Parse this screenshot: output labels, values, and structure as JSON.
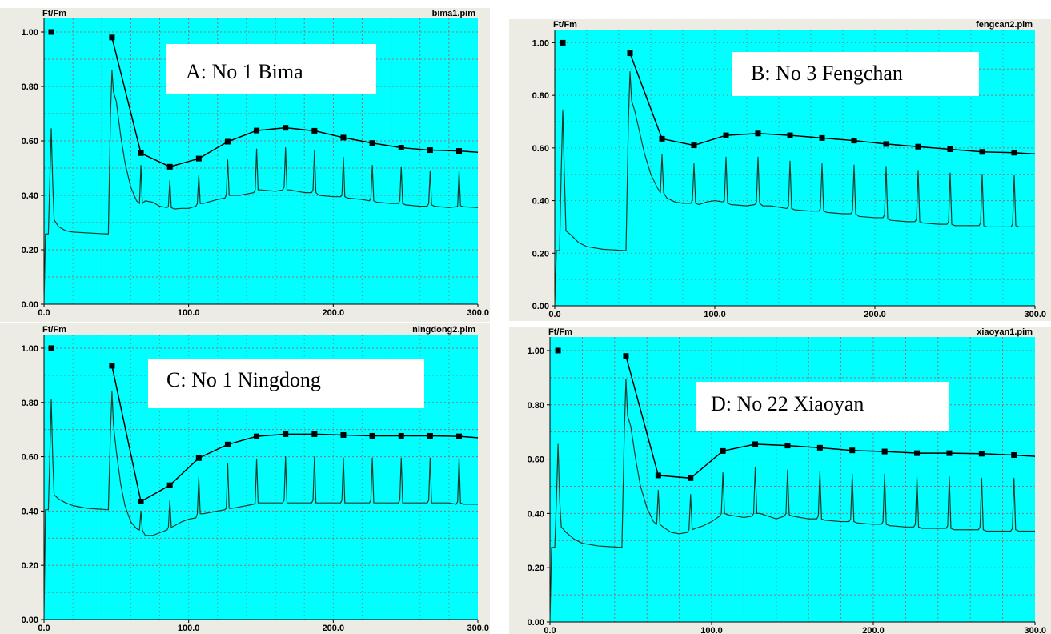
{
  "chart_data": [
    {
      "type": "line",
      "panel": "A",
      "label": "A: No 1 Bima",
      "file": "bima1.pim",
      "ylabel": "Ft/Fm",
      "xlim": [
        0,
        300
      ],
      "ylim": [
        0,
        1.05
      ],
      "y_ticks": [
        "0.00",
        "0.20",
        "0.40",
        "0.60",
        "0.80",
        "1.00"
      ],
      "x_ticks": [
        "0.0",
        "100.0",
        "200.0",
        "300.0"
      ],
      "grid": true,
      "series": [
        {
          "role": "fm-peaks",
          "x": [
            5,
            47,
            67,
            87,
            107,
            127,
            147,
            167,
            187,
            207,
            227,
            247,
            267,
            287
          ],
          "y": [
            1.0,
            0.98,
            0.555,
            0.505,
            0.535,
            0.597,
            0.638,
            0.648,
            0.637,
            0.612,
            0.592,
            0.575,
            0.566,
            0.563
          ]
        },
        {
          "role": "ft-trace",
          "x": [
            0,
            1,
            3,
            4,
            5,
            6,
            7,
            10,
            15,
            20,
            30,
            44,
            44.5,
            46,
            47,
            48,
            50,
            53,
            56,
            60,
            64,
            66,
            67,
            68,
            70,
            75,
            80,
            85,
            86,
            87,
            88,
            90,
            95,
            100,
            105,
            106,
            107,
            108,
            110,
            120,
            125,
            126,
            127,
            128,
            130,
            135,
            140,
            145,
            146,
            147,
            148,
            150,
            160,
            165,
            166,
            167,
            168,
            170,
            180,
            185,
            186,
            187,
            188,
            190,
            200,
            205,
            206,
            207,
            208,
            210,
            220,
            225,
            226,
            227,
            228,
            230,
            240,
            245,
            246,
            247,
            248,
            250,
            260,
            265,
            266,
            267,
            268,
            270,
            280,
            285,
            286,
            287,
            288,
            290,
            300
          ],
          "y": [
            0.0,
            0.258,
            0.258,
            0.45,
            0.645,
            0.45,
            0.31,
            0.285,
            0.27,
            0.265,
            0.262,
            0.258,
            0.258,
            0.7,
            0.86,
            0.78,
            0.745,
            0.62,
            0.52,
            0.43,
            0.38,
            0.37,
            0.51,
            0.37,
            0.38,
            0.375,
            0.36,
            0.355,
            0.36,
            0.455,
            0.355,
            0.35,
            0.352,
            0.352,
            0.36,
            0.37,
            0.475,
            0.37,
            0.37,
            0.385,
            0.39,
            0.4,
            0.53,
            0.4,
            0.4,
            0.4,
            0.405,
            0.41,
            0.42,
            0.57,
            0.42,
            0.42,
            0.415,
            0.42,
            0.43,
            0.575,
            0.42,
            0.42,
            0.41,
            0.41,
            0.42,
            0.565,
            0.41,
            0.4,
            0.395,
            0.395,
            0.4,
            0.54,
            0.395,
            0.39,
            0.385,
            0.38,
            0.39,
            0.51,
            0.38,
            0.375,
            0.37,
            0.37,
            0.38,
            0.505,
            0.37,
            0.365,
            0.36,
            0.36,
            0.37,
            0.49,
            0.365,
            0.36,
            0.355,
            0.358,
            0.36,
            0.488,
            0.362,
            0.358,
            0.355
          ]
        }
      ]
    },
    {
      "type": "line",
      "panel": "B",
      "label": "B: No 3 Fengchan",
      "file": "fengcan2.pim",
      "ylabel": "Ft/Fm",
      "xlim": [
        0,
        300
      ],
      "ylim": [
        0,
        1.05
      ],
      "y_ticks": [
        "0.00",
        "0.20",
        "0.40",
        "0.60",
        "0.80",
        "1.00"
      ],
      "x_ticks": [
        "0.0",
        "100.0",
        "200.0",
        "300.0"
      ],
      "grid": true,
      "series": [
        {
          "role": "fm-peaks",
          "x": [
            5,
            47,
            67,
            87,
            107,
            127,
            147,
            167,
            187,
            207,
            227,
            247,
            267,
            287
          ],
          "y": [
            1.0,
            0.96,
            0.635,
            0.61,
            0.648,
            0.655,
            0.648,
            0.638,
            0.628,
            0.615,
            0.605,
            0.595,
            0.585,
            0.582
          ]
        },
        {
          "role": "ft-trace",
          "x": [
            0,
            1,
            3,
            4,
            5,
            6,
            7,
            10,
            15,
            20,
            30,
            44,
            44.5,
            46,
            47,
            48,
            50,
            53,
            56,
            60,
            64,
            66,
            67,
            68,
            70,
            75,
            80,
            85,
            86,
            87,
            88,
            90,
            95,
            100,
            105,
            106,
            107,
            108,
            110,
            120,
            125,
            126,
            127,
            128,
            130,
            135,
            140,
            145,
            146,
            147,
            148,
            150,
            160,
            165,
            166,
            167,
            168,
            170,
            180,
            185,
            186,
            187,
            188,
            190,
            200,
            205,
            206,
            207,
            208,
            210,
            220,
            225,
            226,
            227,
            228,
            230,
            240,
            245,
            246,
            247,
            248,
            250,
            260,
            265,
            266,
            267,
            268,
            270,
            280,
            285,
            286,
            287,
            288,
            290,
            300
          ],
          "y": [
            0.0,
            0.21,
            0.21,
            0.5,
            0.745,
            0.5,
            0.285,
            0.27,
            0.24,
            0.225,
            0.215,
            0.21,
            0.21,
            0.7,
            0.89,
            0.78,
            0.74,
            0.66,
            0.58,
            0.5,
            0.45,
            0.43,
            0.575,
            0.43,
            0.41,
            0.395,
            0.39,
            0.39,
            0.4,
            0.54,
            0.39,
            0.385,
            0.395,
            0.4,
            0.395,
            0.4,
            0.565,
            0.39,
            0.385,
            0.38,
            0.385,
            0.395,
            0.565,
            0.39,
            0.38,
            0.38,
            0.375,
            0.37,
            0.38,
            0.55,
            0.37,
            0.365,
            0.36,
            0.36,
            0.37,
            0.54,
            0.36,
            0.355,
            0.35,
            0.35,
            0.36,
            0.535,
            0.35,
            0.34,
            0.335,
            0.335,
            0.345,
            0.53,
            0.33,
            0.325,
            0.32,
            0.32,
            0.33,
            0.515,
            0.32,
            0.315,
            0.31,
            0.31,
            0.32,
            0.505,
            0.31,
            0.305,
            0.305,
            0.305,
            0.315,
            0.5,
            0.305,
            0.3,
            0.3,
            0.3,
            0.31,
            0.495,
            0.305,
            0.3,
            0.3
          ]
        }
      ]
    },
    {
      "type": "line",
      "panel": "C",
      "label": "C: No 1 Ningdong",
      "file": "ningdong2.pim",
      "ylabel": "Ft/Fm",
      "xlim": [
        0,
        300
      ],
      "ylim": [
        0,
        1.05
      ],
      "y_ticks": [
        "0.00",
        "0.20",
        "0.40",
        "0.60",
        "0.80",
        "1.00"
      ],
      "x_ticks": [
        "0.0",
        "100.0",
        "200.0",
        "300.0"
      ],
      "grid": true,
      "series": [
        {
          "role": "fm-peaks",
          "x": [
            5,
            47,
            67,
            87,
            107,
            127,
            147,
            167,
            187,
            207,
            227,
            247,
            267,
            287
          ],
          "y": [
            1.0,
            0.935,
            0.435,
            0.495,
            0.595,
            0.645,
            0.675,
            0.683,
            0.683,
            0.68,
            0.677,
            0.677,
            0.677,
            0.675
          ]
        },
        {
          "role": "ft-trace",
          "x": [
            0,
            1,
            3,
            4,
            5,
            6,
            7,
            10,
            15,
            20,
            30,
            44,
            44.5,
            46,
            47,
            48,
            50,
            53,
            56,
            60,
            64,
            66,
            67,
            68,
            70,
            75,
            80,
            85,
            86,
            87,
            88,
            90,
            95,
            100,
            105,
            106,
            107,
            108,
            110,
            120,
            125,
            126,
            127,
            128,
            130,
            135,
            140,
            145,
            146,
            147,
            148,
            150,
            160,
            165,
            166,
            167,
            168,
            170,
            180,
            185,
            186,
            187,
            188,
            190,
            200,
            205,
            206,
            207,
            208,
            210,
            220,
            225,
            226,
            227,
            228,
            230,
            240,
            245,
            246,
            247,
            248,
            250,
            260,
            265,
            266,
            267,
            268,
            270,
            280,
            285,
            286,
            287,
            288,
            290,
            300
          ],
          "y": [
            0.0,
            0.405,
            0.405,
            0.6,
            0.81,
            0.6,
            0.46,
            0.445,
            0.43,
            0.42,
            0.41,
            0.405,
            0.405,
            0.7,
            0.84,
            0.72,
            0.62,
            0.5,
            0.42,
            0.36,
            0.335,
            0.33,
            0.4,
            0.33,
            0.31,
            0.31,
            0.32,
            0.33,
            0.34,
            0.44,
            0.34,
            0.345,
            0.36,
            0.37,
            0.375,
            0.39,
            0.525,
            0.39,
            0.39,
            0.4,
            0.405,
            0.41,
            0.575,
            0.41,
            0.41,
            0.415,
            0.42,
            0.425,
            0.43,
            0.59,
            0.43,
            0.43,
            0.43,
            0.43,
            0.44,
            0.6,
            0.43,
            0.43,
            0.43,
            0.43,
            0.44,
            0.6,
            0.43,
            0.43,
            0.43,
            0.43,
            0.44,
            0.595,
            0.43,
            0.43,
            0.43,
            0.43,
            0.44,
            0.595,
            0.43,
            0.43,
            0.43,
            0.43,
            0.44,
            0.595,
            0.43,
            0.43,
            0.43,
            0.43,
            0.44,
            0.595,
            0.43,
            0.43,
            0.43,
            0.425,
            0.435,
            0.595,
            0.43,
            0.425,
            0.425
          ]
        }
      ]
    },
    {
      "type": "line",
      "panel": "D",
      "label": "D: No 22 Xiaoyan",
      "file": "xiaoyan1.pim",
      "ylabel": "Ft/Fm",
      "xlim": [
        0,
        300
      ],
      "ylim": [
        0,
        1.05
      ],
      "y_ticks": [
        "0.00",
        "0.20",
        "0.40",
        "0.60",
        "0.80",
        "1.00"
      ],
      "x_ticks": [
        "0.0",
        "100.0",
        "200.0",
        "300.0"
      ],
      "grid": true,
      "series": [
        {
          "role": "fm-peaks",
          "x": [
            5,
            47,
            67,
            87,
            107,
            127,
            147,
            167,
            187,
            207,
            227,
            247,
            267,
            287
          ],
          "y": [
            1.0,
            0.98,
            0.54,
            0.53,
            0.63,
            0.655,
            0.65,
            0.642,
            0.632,
            0.628,
            0.622,
            0.622,
            0.62,
            0.615
          ]
        },
        {
          "role": "ft-trace",
          "x": [
            0,
            1,
            3,
            4,
            5,
            6,
            7,
            10,
            15,
            20,
            30,
            44,
            44.5,
            46,
            47,
            48,
            50,
            53,
            56,
            60,
            64,
            66,
            67,
            68,
            70,
            75,
            80,
            85,
            86,
            87,
            88,
            90,
            95,
            100,
            105,
            106,
            107,
            108,
            110,
            120,
            125,
            126,
            127,
            128,
            130,
            135,
            140,
            145,
            146,
            147,
            148,
            150,
            160,
            165,
            166,
            167,
            168,
            170,
            180,
            185,
            186,
            187,
            188,
            190,
            200,
            205,
            206,
            207,
            208,
            210,
            220,
            225,
            226,
            227,
            228,
            230,
            240,
            245,
            246,
            247,
            248,
            250,
            260,
            265,
            266,
            267,
            268,
            270,
            280,
            285,
            286,
            287,
            288,
            290,
            300
          ],
          "y": [
            0.0,
            0.275,
            0.275,
            0.45,
            0.655,
            0.45,
            0.35,
            0.33,
            0.305,
            0.29,
            0.28,
            0.275,
            0.275,
            0.7,
            0.895,
            0.76,
            0.72,
            0.6,
            0.5,
            0.42,
            0.37,
            0.36,
            0.485,
            0.36,
            0.35,
            0.33,
            0.325,
            0.33,
            0.34,
            0.47,
            0.34,
            0.345,
            0.355,
            0.37,
            0.39,
            0.4,
            0.55,
            0.4,
            0.395,
            0.385,
            0.39,
            0.4,
            0.57,
            0.4,
            0.4,
            0.39,
            0.38,
            0.39,
            0.4,
            0.56,
            0.395,
            0.39,
            0.38,
            0.38,
            0.39,
            0.555,
            0.38,
            0.375,
            0.37,
            0.37,
            0.38,
            0.545,
            0.37,
            0.365,
            0.36,
            0.36,
            0.37,
            0.545,
            0.36,
            0.355,
            0.35,
            0.35,
            0.36,
            0.535,
            0.35,
            0.345,
            0.345,
            0.345,
            0.355,
            0.535,
            0.345,
            0.34,
            0.34,
            0.34,
            0.35,
            0.53,
            0.34,
            0.335,
            0.335,
            0.335,
            0.345,
            0.53,
            0.34,
            0.335,
            0.335
          ]
        }
      ]
    }
  ]
}
